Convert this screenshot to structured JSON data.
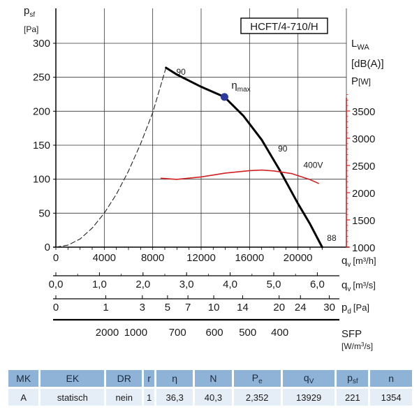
{
  "chart_data": {
    "type": "line",
    "model_label": "HCFT/4-710/H",
    "y_axis": {
      "label_main": "p",
      "label_sub": "sf",
      "unit": "[Pa]",
      "ticks": [
        0,
        50,
        100,
        150,
        200,
        250,
        300
      ],
      "range": [
        0,
        300
      ]
    },
    "right_axis": {
      "label_lwa_main": "L",
      "label_lwa_sub": "WA",
      "label_lwa_unit": "[dB(A)]",
      "label_p": "P",
      "label_p_unit": "[W]",
      "ticks": [
        1000,
        1500,
        2000,
        2500,
        3000,
        3500
      ],
      "range": [
        1000,
        3900
      ],
      "color": "#d42020"
    },
    "x_axis_qh": {
      "label_main": "q",
      "label_sub": "v",
      "unit": "[m³/h]",
      "ticks": [
        "0",
        "4000",
        "8000",
        "12000",
        "16000",
        "20000"
      ],
      "values": [
        0,
        4000,
        8000,
        12000,
        16000,
        20000
      ],
      "range": [
        0,
        24000
      ]
    },
    "x_axis_qs": {
      "label_main": "q",
      "label_sub": "v",
      "unit": "[m³/s]",
      "ticks": [
        "0,0",
        "1,0",
        "2,0",
        "3,0",
        "4,0",
        "5,0",
        "6,0"
      ],
      "values": [
        0,
        1,
        2,
        3,
        4,
        5,
        6
      ]
    },
    "x_axis_pd": {
      "label_main": "p",
      "label_sub": "d",
      "unit": "[Pa]",
      "ticks": [
        "0",
        "1",
        "3",
        "5",
        "7",
        "10",
        "14",
        "20",
        "24",
        "30"
      ],
      "values": [
        0,
        1,
        3,
        5,
        7,
        10,
        14,
        20,
        24,
        30
      ]
    },
    "x_axis_sfp": {
      "label": "SFP",
      "unit_main": "[W/m",
      "unit_sup": "3",
      "unit_end": "/s]",
      "ticks": [
        "2000",
        "1000",
        "700",
        "600",
        "500",
        "400"
      ],
      "qh_positions": [
        4240,
        6600,
        10050,
        13100,
        15850,
        18500
      ]
    },
    "series": [
      {
        "name": "",
        "style": "dashed",
        "color": "#222222",
        "x": [
          0,
          1000,
          2000,
          3000,
          4000,
          5000,
          6000,
          7000,
          8000,
          9100
        ],
        "y": [
          0,
          3,
          12,
          28,
          50,
          78,
          112,
          152,
          198,
          264
        ]
      },
      {
        "name": "",
        "style": "solid",
        "color": "#000000",
        "x": [
          9100,
          10000,
          12000,
          13929,
          15500,
          17000,
          18500,
          20000,
          21000,
          22000
        ],
        "y": [
          264,
          254,
          236,
          221,
          193,
          158,
          113,
          64,
          34,
          0
        ]
      },
      {
        "name": "400V",
        "style": "solid",
        "color": "#d42020",
        "axis": "right",
        "x": [
          8700,
          10000,
          12000,
          14000,
          16000,
          17000,
          18000,
          19500,
          21000,
          21700
        ],
        "y": [
          2265,
          2245,
          2290,
          2360,
          2405,
          2415,
          2400,
          2350,
          2240,
          2170
        ]
      }
    ],
    "operating_point": {
      "x": 13929,
      "y": 221,
      "label_main": "η",
      "label_sub": "max"
    },
    "annotations": [
      {
        "text": "90",
        "x": 9950,
        "y": 254
      },
      {
        "text": "90",
        "x": 18350,
        "y": 141
      },
      {
        "text": "88",
        "x": 22400,
        "y": 9
      },
      {
        "text": "400V",
        "x": 20450,
        "y": 2455,
        "axis": "right"
      }
    ]
  },
  "table": {
    "headers": [
      {
        "main": "MK",
        "sub": ""
      },
      {
        "main": "EK",
        "sub": ""
      },
      {
        "main": "DR",
        "sub": ""
      },
      {
        "main": "r",
        "sub": ""
      },
      {
        "main": "η",
        "sub": ""
      },
      {
        "main": "N",
        "sub": ""
      },
      {
        "main": "P",
        "sub": "e"
      },
      {
        "main": "q",
        "sub": "V"
      },
      {
        "main": "p",
        "sub": "sf"
      },
      {
        "main": "n",
        "sub": ""
      }
    ],
    "row": [
      "A",
      "statisch",
      "nein",
      "1",
      "36,3",
      "40,3",
      "2,352",
      "13929",
      "221",
      "1354"
    ]
  }
}
